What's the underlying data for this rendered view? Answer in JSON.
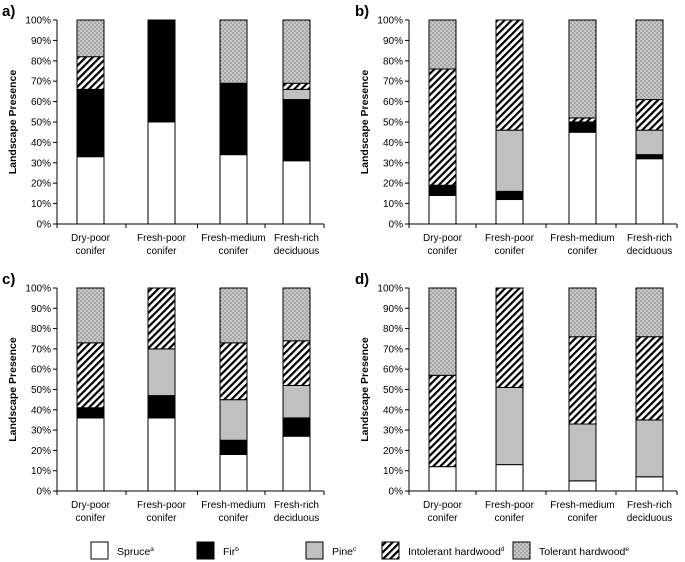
{
  "chart_data": {
    "type": "bar",
    "stacked": true,
    "ylabel": "Landscape Presence",
    "yticks": [
      "0%",
      "10%",
      "20%",
      "30%",
      "40%",
      "50%",
      "60%",
      "70%",
      "80%",
      "90%",
      "100%"
    ],
    "ylim": [
      0,
      100
    ],
    "categories": [
      [
        "Dry-poor",
        "conifer"
      ],
      [
        "Fresh-poor",
        "conifer"
      ],
      [
        "Fresh-medium",
        "conifer"
      ],
      [
        "Fresh-rich",
        "deciduous"
      ]
    ],
    "series_order": [
      "Spruce",
      "Fir",
      "Pine",
      "Intolerant hardwood",
      "Tolerant hardwood"
    ],
    "colors": {
      "Spruce": "#ffffff",
      "Fir": "#000000",
      "Pine": "#c0c0c0",
      "Intolerant hardwood": "hatch",
      "Tolerant hardwood": "dots"
    },
    "legend": [
      {
        "name": "Spruce",
        "sup": "a"
      },
      {
        "name": "Fir",
        "sup": "b"
      },
      {
        "name": "Pine",
        "sup": "c"
      },
      {
        "name": "Intolerant hardwood",
        "sup": "d"
      },
      {
        "name": "Tolerant hardwood",
        "sup": "e"
      }
    ],
    "panels": [
      {
        "label": "a)",
        "series": [
          {
            "name": "Spruce",
            "values": [
              33,
              50,
              34,
              31
            ]
          },
          {
            "name": "Fir",
            "values": [
              33,
              50,
              35,
              30
            ]
          },
          {
            "name": "Pine",
            "values": [
              0,
              0,
              0,
              5
            ]
          },
          {
            "name": "Intolerant hardwood",
            "values": [
              16,
              0,
              0,
              3
            ]
          },
          {
            "name": "Tolerant hardwood",
            "values": [
              18,
              0,
              31,
              31
            ]
          }
        ]
      },
      {
        "label": "b)",
        "series": [
          {
            "name": "Spruce",
            "values": [
              14,
              12,
              45,
              32
            ]
          },
          {
            "name": "Fir",
            "values": [
              5,
              4,
              5,
              2
            ]
          },
          {
            "name": "Pine",
            "values": [
              0,
              30,
              0,
              12
            ]
          },
          {
            "name": "Intolerant hardwood",
            "values": [
              57,
              54,
              2,
              15
            ]
          },
          {
            "name": "Tolerant hardwood",
            "values": [
              24,
              0,
              48,
              39
            ]
          }
        ]
      },
      {
        "label": "c)",
        "series": [
          {
            "name": "Spruce",
            "values": [
              36,
              36,
              18,
              27
            ]
          },
          {
            "name": "Fir",
            "values": [
              5,
              11,
              7,
              9
            ]
          },
          {
            "name": "Pine",
            "values": [
              0,
              23,
              20,
              16
            ]
          },
          {
            "name": "Intolerant hardwood",
            "values": [
              32,
              30,
              28,
              22
            ]
          },
          {
            "name": "Tolerant hardwood",
            "values": [
              27,
              0,
              27,
              26
            ]
          }
        ]
      },
      {
        "label": "d)",
        "series": [
          {
            "name": "Spruce",
            "values": [
              12,
              13,
              5,
              7
            ]
          },
          {
            "name": "Fir",
            "values": [
              0,
              0,
              0,
              0
            ]
          },
          {
            "name": "Pine",
            "values": [
              0,
              38,
              28,
              28
            ]
          },
          {
            "name": "Intolerant hardwood",
            "values": [
              45,
              49,
              43,
              41
            ]
          },
          {
            "name": "Tolerant hardwood",
            "values": [
              43,
              0,
              24,
              24
            ]
          }
        ]
      }
    ]
  }
}
